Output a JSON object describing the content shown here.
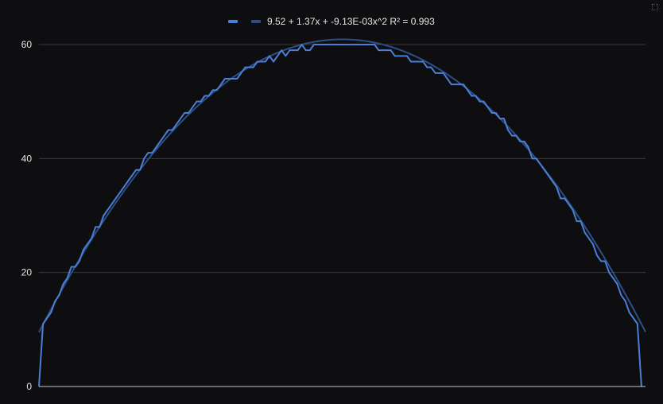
{
  "chart_data": {
    "type": "line",
    "title": "",
    "xlabel": "",
    "ylabel": "",
    "x_axis": {
      "range": [
        0,
        150
      ],
      "labels_visible": false
    },
    "y_axis": {
      "range": [
        0,
        60
      ],
      "ticks": [
        0,
        20,
        40,
        60
      ]
    },
    "grid": "horizontal",
    "legend": {
      "placement": "top-center"
    },
    "colors": {
      "background": "#0e0e10",
      "grid": "#3a3a3a",
      "baseline": "#c8c8c8",
      "series": "#4a7fd6",
      "trendline": "#2c4f86",
      "legend_swatch_series": "#4a7fd6",
      "legend_swatch_trend": "#2c4f86",
      "text": "#e6e6e6"
    },
    "series": [
      {
        "values": [
          [
            0,
            0
          ],
          [
            1,
            11
          ],
          [
            2,
            12
          ],
          [
            3,
            13
          ],
          [
            4,
            15
          ],
          [
            5,
            16
          ],
          [
            6,
            18
          ],
          [
            7,
            19
          ],
          [
            8,
            21
          ],
          [
            9,
            21
          ],
          [
            10,
            22
          ],
          [
            11,
            24
          ],
          [
            12,
            25
          ],
          [
            13,
            26
          ],
          [
            14,
            28
          ],
          [
            15,
            28
          ],
          [
            16,
            30
          ],
          [
            17,
            31
          ],
          [
            18,
            32
          ],
          [
            19,
            33
          ],
          [
            20,
            34
          ],
          [
            21,
            35
          ],
          [
            22,
            36
          ],
          [
            23,
            37
          ],
          [
            24,
            38
          ],
          [
            25,
            38
          ],
          [
            26,
            40
          ],
          [
            27,
            41
          ],
          [
            28,
            41
          ],
          [
            29,
            42
          ],
          [
            30,
            43
          ],
          [
            31,
            44
          ],
          [
            32,
            45
          ],
          [
            33,
            45
          ],
          [
            34,
            46
          ],
          [
            35,
            47
          ],
          [
            36,
            48
          ],
          [
            37,
            48
          ],
          [
            38,
            49
          ],
          [
            39,
            50
          ],
          [
            40,
            50
          ],
          [
            41,
            51
          ],
          [
            42,
            51
          ],
          [
            43,
            52
          ],
          [
            44,
            52
          ],
          [
            45,
            53
          ],
          [
            46,
            54
          ],
          [
            47,
            54
          ],
          [
            48,
            54
          ],
          [
            49,
            54
          ],
          [
            50,
            55
          ],
          [
            51,
            56
          ],
          [
            52,
            56
          ],
          [
            53,
            56
          ],
          [
            54,
            57
          ],
          [
            55,
            57
          ],
          [
            56,
            57
          ],
          [
            57,
            58
          ],
          [
            58,
            57
          ],
          [
            59,
            58
          ],
          [
            60,
            59
          ],
          [
            61,
            58
          ],
          [
            62,
            59
          ],
          [
            63,
            59
          ],
          [
            64,
            59
          ],
          [
            65,
            60
          ],
          [
            66,
            59
          ],
          [
            67,
            59
          ],
          [
            68,
            60
          ],
          [
            69,
            60
          ],
          [
            70,
            60
          ],
          [
            71,
            60
          ],
          [
            72,
            60
          ],
          [
            73,
            60
          ],
          [
            74,
            60
          ],
          [
            75,
            60
          ],
          [
            76,
            60
          ],
          [
            77,
            60
          ],
          [
            78,
            60
          ],
          [
            79,
            60
          ],
          [
            80,
            60
          ],
          [
            81,
            60
          ],
          [
            82,
            60
          ],
          [
            83,
            60
          ],
          [
            84,
            59
          ],
          [
            85,
            59
          ],
          [
            86,
            59
          ],
          [
            87,
            59
          ],
          [
            88,
            58
          ],
          [
            89,
            58
          ],
          [
            90,
            58
          ],
          [
            91,
            58
          ],
          [
            92,
            57
          ],
          [
            93,
            57
          ],
          [
            94,
            57
          ],
          [
            95,
            57
          ],
          [
            96,
            56
          ],
          [
            97,
            56
          ],
          [
            98,
            55
          ],
          [
            99,
            55
          ],
          [
            100,
            55
          ],
          [
            101,
            54
          ],
          [
            102,
            53
          ],
          [
            103,
            53
          ],
          [
            104,
            53
          ],
          [
            105,
            53
          ],
          [
            106,
            52
          ],
          [
            107,
            51
          ],
          [
            108,
            51
          ],
          [
            109,
            50
          ],
          [
            110,
            50
          ],
          [
            111,
            49
          ],
          [
            112,
            48
          ],
          [
            113,
            48
          ],
          [
            114,
            47
          ],
          [
            115,
            47
          ],
          [
            116,
            45
          ],
          [
            117,
            44
          ],
          [
            118,
            44
          ],
          [
            119,
            43
          ],
          [
            120,
            43
          ],
          [
            121,
            42
          ],
          [
            122,
            40
          ],
          [
            123,
            40
          ],
          [
            124,
            39
          ],
          [
            125,
            38
          ],
          [
            126,
            37
          ],
          [
            127,
            36
          ],
          [
            128,
            35
          ],
          [
            129,
            33
          ],
          [
            130,
            33
          ],
          [
            131,
            32
          ],
          [
            132,
            31
          ],
          [
            133,
            29
          ],
          [
            134,
            29
          ],
          [
            135,
            27
          ],
          [
            136,
            26
          ],
          [
            137,
            25
          ],
          [
            138,
            23
          ],
          [
            139,
            22
          ],
          [
            140,
            22
          ],
          [
            141,
            20
          ],
          [
            142,
            19
          ],
          [
            143,
            18
          ],
          [
            144,
            16
          ],
          [
            145,
            15
          ],
          [
            146,
            13
          ],
          [
            147,
            12
          ],
          [
            148,
            11
          ],
          [
            149,
            0
          ]
        ]
      },
      {
        "name": "9.52 + 1.37x + -9.13E-03x^2 R² = 0.993",
        "kind": "trendline",
        "equation": {
          "a": 9.52,
          "b": 1.37,
          "c": -0.00913
        },
        "r_squared": 0.993,
        "x_range": [
          0,
          150
        ]
      }
    ]
  }
}
